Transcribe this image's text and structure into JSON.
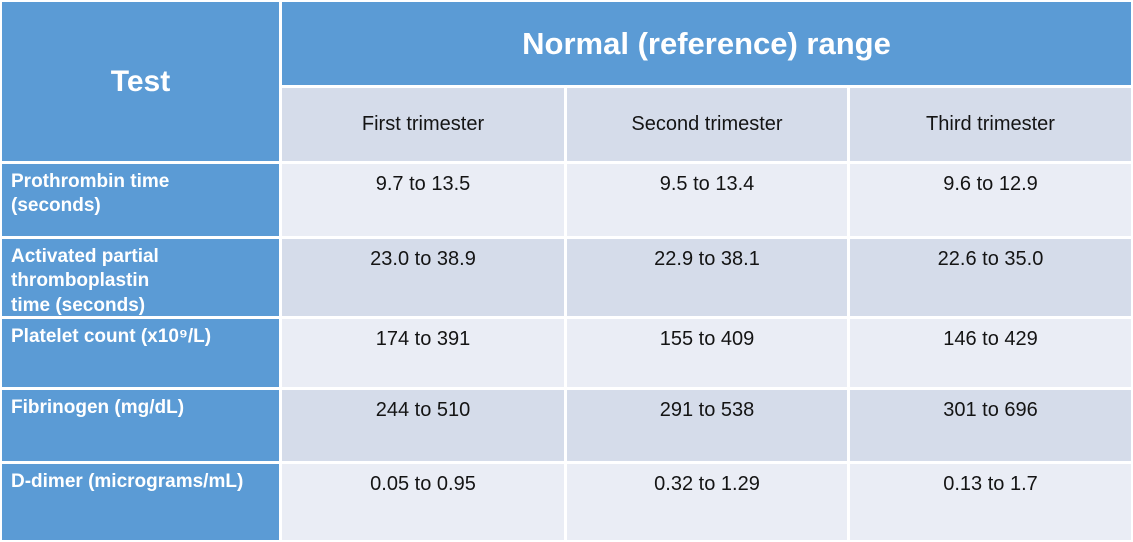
{
  "table": {
    "test_header": "Test",
    "range_header": "Normal (reference) range",
    "trimesters": {
      "first": "First trimester",
      "second": "Second trimester",
      "third": "Third trimester"
    },
    "rows": [
      {
        "test": "Prothrombin time\n(seconds)",
        "first": "9.7 to 13.5",
        "second": "9.5 to 13.4",
        "third": "9.6 to 12.9"
      },
      {
        "test": "Activated partial\nthromboplastin\ntime (seconds)",
        "first": "23.0 to 38.9",
        "second": "22.9 to 38.1",
        "third": "22.6 to 35.0"
      },
      {
        "test": "Platelet count (x10⁹/L)",
        "first": "174 to 391",
        "second": "155 to 409",
        "third": "146 to 429"
      },
      {
        "test": "Fibrinogen (mg/dL)",
        "first": "244 to 510",
        "second": "291 to 538",
        "third": "301 to 696"
      },
      {
        "test": "D-dimer (micrograms/mL)",
        "first": "0.05 to 0.95",
        "second": "0.32 to 1.29",
        "third": "0.13 to 1.7"
      }
    ]
  },
  "colors": {
    "header_blue": "#5B9BD5",
    "band_light": "#EAEDF5",
    "band_dark": "#D5DCEA",
    "grid_white": "#FFFFFF",
    "text_dark": "#141414",
    "text_white": "#FFFFFF"
  },
  "chart_data": {
    "type": "table",
    "title": "Normal (reference) range",
    "columns": [
      "Test",
      "First trimester",
      "Second trimester",
      "Third trimester"
    ],
    "rows": [
      [
        "Prothrombin time (seconds)",
        "9.7 to 13.5",
        "9.5 to 13.4",
        "9.6 to 12.9"
      ],
      [
        "Activated partial thromboplastin time (seconds)",
        "23.0 to 38.9",
        "22.9 to 38.1",
        "22.6 to 35.0"
      ],
      [
        "Platelet count (x10⁹/L)",
        "174 to 391",
        "155 to 409",
        "146 to 429"
      ],
      [
        "Fibrinogen (mg/dL)",
        "244 to 510",
        "291 to 538",
        "301 to 696"
      ],
      [
        "D-dimer (micrograms/mL)",
        "0.05 to 0.95",
        "0.32 to 1.29",
        "0.13 to 1.7"
      ]
    ]
  }
}
